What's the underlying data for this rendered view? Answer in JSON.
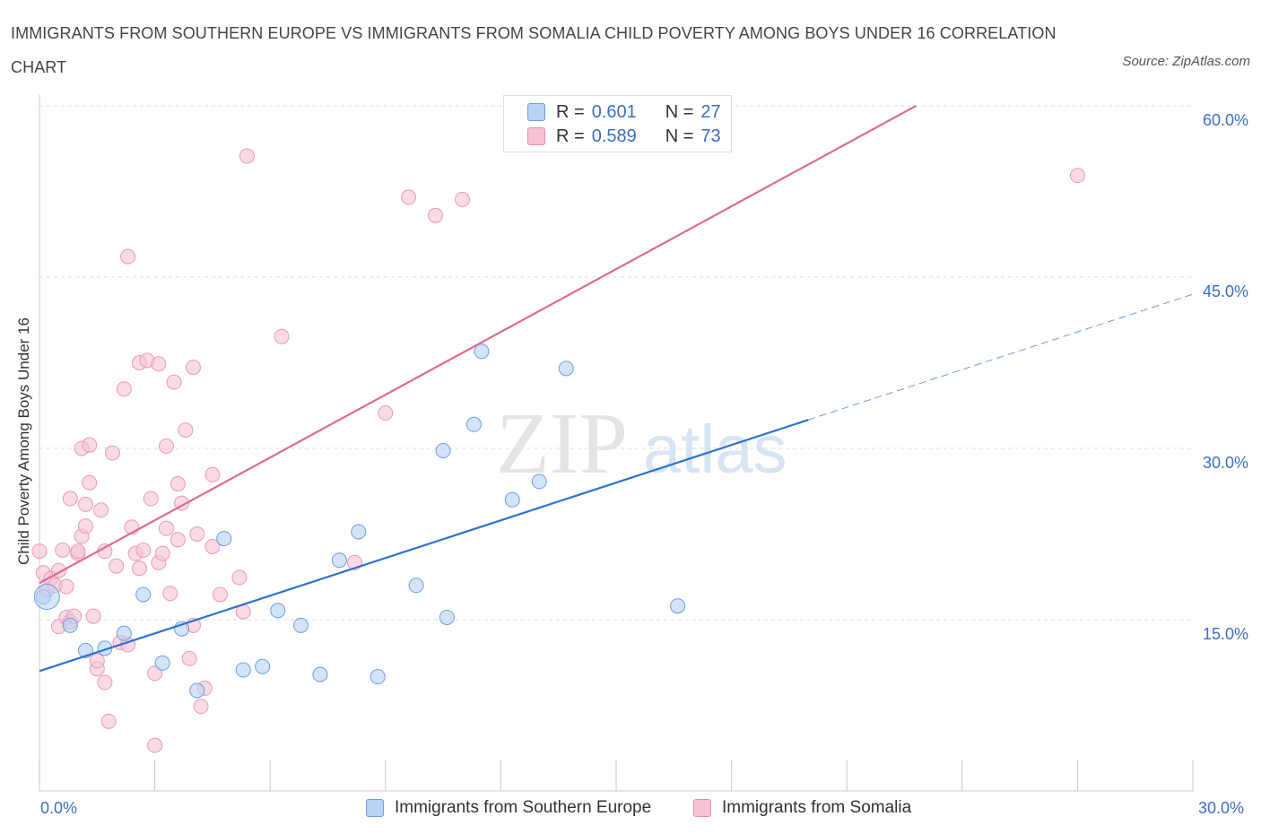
{
  "title": "IMMIGRANTS FROM SOUTHERN EUROPE VS IMMIGRANTS FROM SOMALIA CHILD POVERTY AMONG BOYS UNDER 16 CORRELATION CHART",
  "source": "Source: ZipAtlas.com",
  "watermark": {
    "zip": "ZIP",
    "atlas": "atlas"
  },
  "colors": {
    "blue": "#3070d0",
    "blue_fill": "#b8d2f4",
    "pink": "#e06a93",
    "pink_fill": "#f7c3d4",
    "grid": "#dddddd",
    "axis_text": "#3a6fc4"
  },
  "legend": {
    "r_label": "R =",
    "n_label": "N =",
    "blue": {
      "r": "0.601",
      "n": "27"
    },
    "pink": {
      "r": "0.589",
      "n": "73"
    }
  },
  "chart_data": {
    "type": "scatter",
    "title": "IMMIGRANTS FROM SOUTHERN EUROPE VS IMMIGRANTS FROM SOMALIA CHILD POVERTY AMONG BOYS UNDER 16 CORRELATION CHART",
    "xlabel": "",
    "ylabel": "Child Poverty Among Boys Under 16",
    "xlim": [
      0,
      30
    ],
    "ylim": [
      0,
      60
    ],
    "x_tick_labels": [
      "0.0%",
      "30.0%"
    ],
    "y_ticks": [
      15,
      30,
      45,
      60
    ],
    "y_tick_labels": [
      "15.0%",
      "30.0%",
      "45.0%",
      "60.0%"
    ],
    "grid": true,
    "legend_position": "top-center",
    "series": [
      {
        "name": "Immigrants from Southern Europe",
        "color": "#3070d0",
        "r": 0.601,
        "n": 27,
        "trend": {
          "x0": 0,
          "y0": 10.5,
          "x1": 20,
          "y1": 32.5,
          "dashed_to_x": 30,
          "dashed_to_y": 43.5
        },
        "points": [
          [
            0.1,
            17.0
          ],
          [
            0.8,
            14.5
          ],
          [
            1.2,
            12.3
          ],
          [
            1.7,
            12.5
          ],
          [
            2.2,
            13.8
          ],
          [
            2.7,
            17.2
          ],
          [
            3.2,
            11.2
          ],
          [
            3.7,
            14.2
          ],
          [
            4.1,
            8.8
          ],
          [
            4.8,
            22.1
          ],
          [
            5.3,
            10.6
          ],
          [
            5.8,
            10.9
          ],
          [
            6.2,
            15.8
          ],
          [
            6.8,
            14.5
          ],
          [
            7.3,
            10.2
          ],
          [
            7.8,
            20.2
          ],
          [
            8.3,
            22.7
          ],
          [
            8.8,
            10.0
          ],
          [
            9.8,
            18.0
          ],
          [
            10.6,
            15.2
          ],
          [
            10.5,
            29.8
          ],
          [
            11.3,
            32.1
          ],
          [
            11.5,
            38.5
          ],
          [
            12.3,
            25.5
          ],
          [
            13.0,
            27.1
          ],
          [
            13.7,
            37.0
          ],
          [
            16.6,
            16.2
          ]
        ]
      },
      {
        "name": "Immigrants from Somalia",
        "color": "#e06a93",
        "r": 0.589,
        "n": 73,
        "trend": {
          "x0": 0,
          "y0": 18.2,
          "x1": 22.8,
          "y1": 60.0
        },
        "points": [
          [
            0.0,
            21.0
          ],
          [
            0.1,
            19.1
          ],
          [
            0.2,
            17.6
          ],
          [
            0.3,
            18.6
          ],
          [
            0.4,
            18.0
          ],
          [
            0.5,
            19.3
          ],
          [
            0.5,
            14.4
          ],
          [
            0.6,
            21.1
          ],
          [
            0.7,
            15.2
          ],
          [
            0.7,
            17.9
          ],
          [
            0.8,
            25.6
          ],
          [
            0.8,
            14.8
          ],
          [
            0.9,
            15.3
          ],
          [
            1.0,
            20.8
          ],
          [
            1.0,
            21.0
          ],
          [
            1.1,
            22.3
          ],
          [
            1.1,
            30.0
          ],
          [
            1.2,
            23.2
          ],
          [
            1.2,
            25.1
          ],
          [
            1.3,
            27.0
          ],
          [
            1.3,
            30.3
          ],
          [
            1.4,
            15.3
          ],
          [
            1.5,
            10.7
          ],
          [
            1.5,
            11.4
          ],
          [
            1.6,
            24.6
          ],
          [
            1.7,
            9.5
          ],
          [
            1.7,
            21.0
          ],
          [
            1.8,
            6.1
          ],
          [
            1.9,
            29.6
          ],
          [
            2.0,
            19.7
          ],
          [
            2.1,
            13.0
          ],
          [
            2.2,
            35.2
          ],
          [
            2.3,
            12.8
          ],
          [
            2.3,
            46.8
          ],
          [
            2.4,
            23.1
          ],
          [
            2.5,
            20.8
          ],
          [
            2.6,
            19.5
          ],
          [
            2.6,
            37.5
          ],
          [
            2.7,
            21.1
          ],
          [
            2.8,
            37.7
          ],
          [
            2.9,
            25.6
          ],
          [
            3.0,
            4.0
          ],
          [
            3.0,
            10.3
          ],
          [
            3.1,
            20.0
          ],
          [
            3.1,
            37.4
          ],
          [
            3.2,
            20.8
          ],
          [
            3.3,
            30.2
          ],
          [
            3.3,
            23.0
          ],
          [
            3.4,
            17.3
          ],
          [
            3.5,
            35.8
          ],
          [
            3.6,
            26.9
          ],
          [
            3.6,
            22.0
          ],
          [
            3.7,
            25.2
          ],
          [
            3.8,
            31.6
          ],
          [
            3.9,
            11.6
          ],
          [
            4.0,
            14.5
          ],
          [
            4.0,
            37.1
          ],
          [
            4.1,
            22.5
          ],
          [
            4.2,
            7.4
          ],
          [
            4.3,
            9.0
          ],
          [
            4.5,
            21.4
          ],
          [
            4.5,
            27.7
          ],
          [
            4.7,
            17.2
          ],
          [
            5.2,
            18.7
          ],
          [
            5.3,
            15.7
          ],
          [
            5.4,
            55.6
          ],
          [
            6.3,
            39.8
          ],
          [
            8.2,
            20.0
          ],
          [
            9.0,
            33.1
          ],
          [
            9.6,
            52.0
          ],
          [
            10.3,
            50.4
          ],
          [
            11.0,
            51.8
          ],
          [
            27.0,
            53.9
          ]
        ]
      }
    ]
  }
}
